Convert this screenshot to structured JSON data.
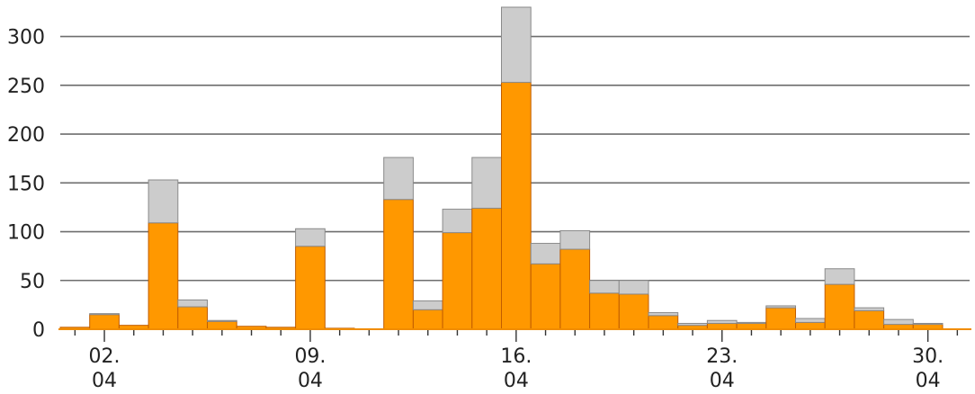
{
  "chart_data": {
    "type": "bar",
    "stacked": true,
    "title": "",
    "xlabel": "",
    "ylabel": "",
    "ylim": [
      0,
      330
    ],
    "grid": true,
    "y_ticks": [
      0,
      50,
      100,
      150,
      200,
      250,
      300
    ],
    "x_tick_labels": [
      {
        "day": 2,
        "lines": [
          "02.",
          "04"
        ]
      },
      {
        "day": 9,
        "lines": [
          "09.",
          "04"
        ]
      },
      {
        "day": 16,
        "lines": [
          "16.",
          "04"
        ]
      },
      {
        "day": 23,
        "lines": [
          "23.",
          "04"
        ]
      },
      {
        "day": 30,
        "lines": [
          "30.",
          "04"
        ]
      }
    ],
    "days": [
      1,
      2,
      3,
      4,
      5,
      6,
      7,
      8,
      9,
      10,
      11,
      12,
      13,
      14,
      15,
      16,
      17,
      18,
      19,
      20,
      21,
      22,
      23,
      24,
      25,
      26,
      27,
      28,
      29,
      30,
      31
    ],
    "series": [
      {
        "color": "#ff9800",
        "values": [
          2,
          15,
          4,
          109,
          23,
          8,
          3,
          2,
          85,
          1,
          0,
          133,
          20,
          99,
          124,
          253,
          67,
          82,
          37,
          36,
          14,
          4,
          6,
          6,
          22,
          7,
          46,
          19,
          5,
          5,
          0
        ]
      },
      {
        "color": "#cccccc",
        "values": [
          0,
          1,
          0,
          44,
          7,
          1,
          0,
          0,
          18,
          0,
          0,
          43,
          9,
          24,
          52,
          77,
          21,
          19,
          13,
          14,
          3,
          2,
          3,
          1,
          2,
          4,
          16,
          3,
          5,
          1,
          0
        ]
      }
    ]
  }
}
